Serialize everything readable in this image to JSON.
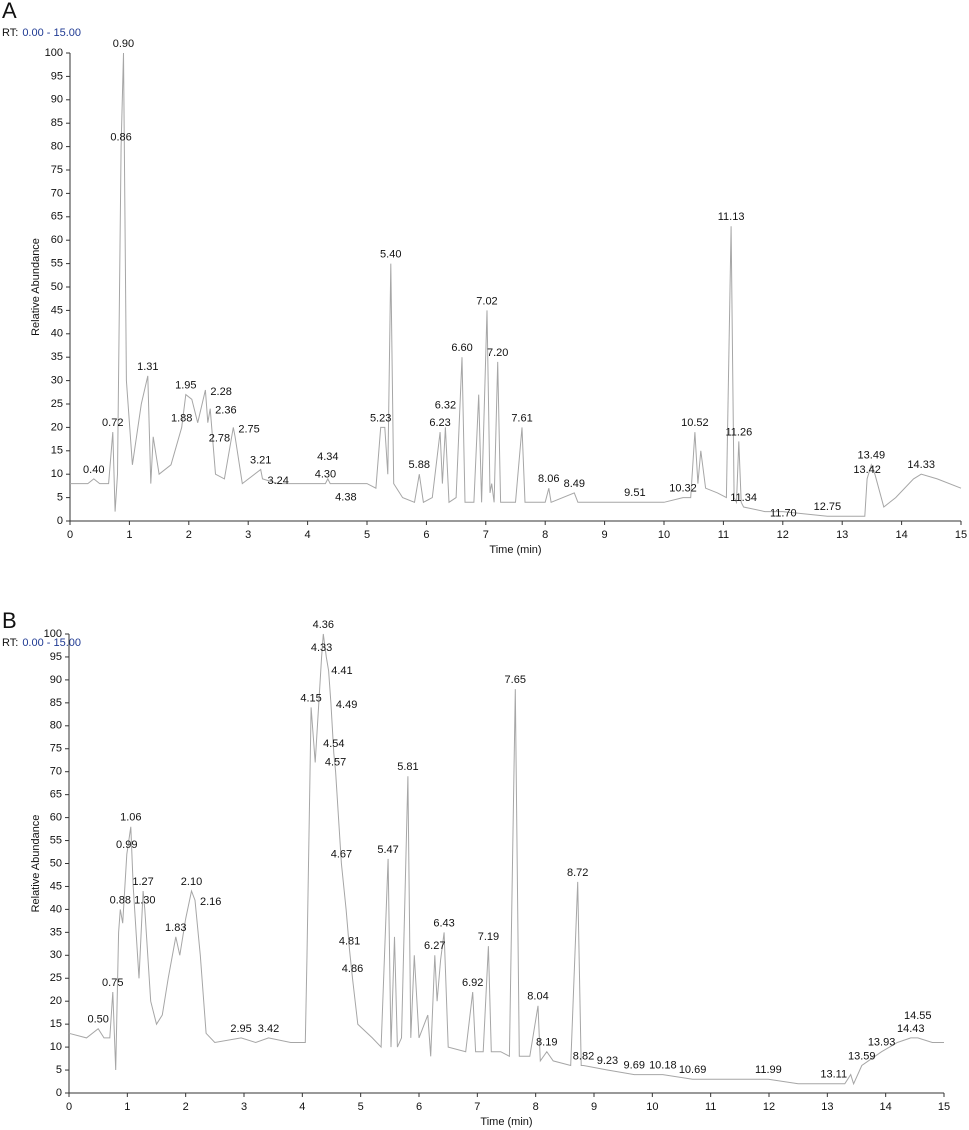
{
  "chart_data": [
    {
      "type": "line",
      "panel": "A",
      "rt_label": "RT:",
      "rt_range": "0.00 - 15.00",
      "x_label": "Time (min)",
      "y_label": "Relative Abundance",
      "color": "#a6a6a6",
      "xlim": [
        0,
        15
      ],
      "xticks": [
        0,
        1,
        2,
        3,
        4,
        5,
        6,
        7,
        8,
        9,
        10,
        11,
        12,
        13,
        14,
        15
      ],
      "ylim": [
        0,
        100
      ],
      "yticks": [
        0,
        5,
        10,
        15,
        20,
        25,
        30,
        35,
        40,
        45,
        50,
        55,
        60,
        65,
        70,
        75,
        80,
        85,
        90,
        95,
        100
      ],
      "x": [
        0,
        0.3,
        0.4,
        0.5,
        0.65,
        0.72,
        0.76,
        0.8,
        0.86,
        0.9,
        0.95,
        1.05,
        1.2,
        1.31,
        1.36,
        1.4,
        1.5,
        1.7,
        1.88,
        1.95,
        2.05,
        2.15,
        2.28,
        2.32,
        2.36,
        2.45,
        2.6,
        2.75,
        2.78,
        2.9,
        3.21,
        3.24,
        3.5,
        4.3,
        4.34,
        4.38,
        5.0,
        5.15,
        5.23,
        5.3,
        5.35,
        5.4,
        5.45,
        5.6,
        5.8,
        5.88,
        5.95,
        6.1,
        6.23,
        6.27,
        6.32,
        6.38,
        6.5,
        6.6,
        6.65,
        6.8,
        6.88,
        6.93,
        7.02,
        7.07,
        7.1,
        7.14,
        7.2,
        7.25,
        7.5,
        7.61,
        7.66,
        8.0,
        8.06,
        8.1,
        8.49,
        8.55,
        9.51,
        10.0,
        10.32,
        10.45,
        10.52,
        10.57,
        10.62,
        10.7,
        10.9,
        11.05,
        11.13,
        11.18,
        11.22,
        11.26,
        11.3,
        11.34,
        11.7,
        12.0,
        12.75,
        13.3,
        13.38,
        13.42,
        13.49,
        13.55,
        13.7,
        13.9,
        14.2,
        14.33,
        14.6,
        15
      ],
      "values": [
        8,
        8,
        9,
        8,
        8,
        19,
        2,
        10,
        80,
        100,
        30,
        12,
        25,
        31,
        8,
        18,
        10,
        12,
        20,
        27,
        26,
        21,
        28,
        21,
        24,
        10,
        9,
        20,
        18,
        8,
        11,
        9,
        8,
        8,
        9,
        8,
        8,
        7,
        20,
        20,
        10,
        55,
        8,
        5,
        4,
        10,
        4,
        5,
        19,
        8,
        20,
        4,
        5,
        35,
        4,
        4,
        27,
        4,
        45,
        6,
        8,
        4,
        34,
        4,
        4,
        20,
        4,
        4,
        7,
        4,
        6,
        4,
        4,
        4,
        5,
        5,
        19,
        8,
        15,
        7,
        6,
        5,
        63,
        5,
        4,
        17,
        4,
        3,
        2,
        2,
        1,
        1,
        1,
        9,
        12,
        10,
        3,
        5,
        9,
        10,
        9,
        7
      ],
      "peaks": [
        {
          "value": 0.4,
          "label": "0.40",
          "height": 9
        },
        {
          "value": 0.72,
          "label": "0.72",
          "height": 19
        },
        {
          "value": 0.86,
          "label": "0.86",
          "height": 80
        },
        {
          "value": 0.9,
          "label": "0.90",
          "height": 100
        },
        {
          "value": 1.31,
          "label": "1.31",
          "height": 31
        },
        {
          "value": 1.88,
          "label": "1.88",
          "height": 20
        },
        {
          "value": 1.95,
          "label": "1.95",
          "height": 27
        },
        {
          "value": 2.28,
          "label": "2.28",
          "height": 28
        },
        {
          "value": 2.36,
          "label": "2.36",
          "height": 24
        },
        {
          "value": 2.75,
          "label": "2.75",
          "height": 20
        },
        {
          "value": 2.78,
          "label": "2.78",
          "height": 18
        },
        {
          "value": 3.21,
          "label": "3.21",
          "height": 11
        },
        {
          "value": 3.24,
          "label": "3.24",
          "height": 9
        },
        {
          "value": 4.3,
          "label": "4.30",
          "height": 8
        },
        {
          "value": 4.34,
          "label": "4.34",
          "height": 9
        },
        {
          "value": 4.38,
          "label": "4.38",
          "height": 8
        },
        {
          "value": 5.23,
          "label": "5.23",
          "height": 20
        },
        {
          "value": 5.4,
          "label": "5.40",
          "height": 55
        },
        {
          "value": 5.88,
          "label": "5.88",
          "height": 10
        },
        {
          "value": 6.23,
          "label": "6.23",
          "height": 19
        },
        {
          "value": 6.32,
          "label": "6.32",
          "height": 20
        },
        {
          "value": 6.6,
          "label": "6.60",
          "height": 35
        },
        {
          "value": 7.02,
          "label": "7.02",
          "height": 45
        },
        {
          "value": 7.2,
          "label": "7.20",
          "height": 34
        },
        {
          "value": 7.61,
          "label": "7.61",
          "height": 20
        },
        {
          "value": 8.06,
          "label": "8.06",
          "height": 7
        },
        {
          "value": 8.49,
          "label": "8.49",
          "height": 6
        },
        {
          "value": 9.51,
          "label": "9.51",
          "height": 4
        },
        {
          "value": 10.32,
          "label": "10.32",
          "height": 5
        },
        {
          "value": 10.52,
          "label": "10.52",
          "height": 19
        },
        {
          "value": 11.13,
          "label": "11.13",
          "height": 63
        },
        {
          "value": 11.26,
          "label": "11.26",
          "height": 17
        },
        {
          "value": 11.34,
          "label": "11.34",
          "height": 3
        },
        {
          "value": 11.7,
          "label": "11.70",
          "height": 2
        },
        {
          "value": 12.75,
          "label": "12.75",
          "height": 1
        },
        {
          "value": 13.42,
          "label": "13.42",
          "height": 9
        },
        {
          "value": 13.49,
          "label": "13.49",
          "height": 12
        },
        {
          "value": 14.33,
          "label": "14.33",
          "height": 10
        }
      ]
    },
    {
      "type": "line",
      "panel": "B",
      "rt_label": "RT:",
      "rt_range": "0.00 - 15.00",
      "x_label": "Time (min)",
      "y_label": "Relative Abundance",
      "color": "#a6a6a6",
      "xlim": [
        0,
        15
      ],
      "xticks": [
        0,
        1,
        2,
        3,
        4,
        5,
        6,
        7,
        8,
        9,
        10,
        11,
        12,
        13,
        14,
        15
      ],
      "ylim": [
        0,
        100
      ],
      "yticks": [
        0,
        5,
        10,
        15,
        20,
        25,
        30,
        35,
        40,
        45,
        50,
        55,
        60,
        65,
        70,
        75,
        80,
        85,
        90,
        95,
        100
      ],
      "x": [
        0,
        0.3,
        0.5,
        0.6,
        0.7,
        0.75,
        0.8,
        0.85,
        0.88,
        0.92,
        0.99,
        1.06,
        1.1,
        1.2,
        1.27,
        1.3,
        1.4,
        1.5,
        1.6,
        1.7,
        1.83,
        1.9,
        2.0,
        2.1,
        2.16,
        2.25,
        2.35,
        2.5,
        2.95,
        3.2,
        3.42,
        3.8,
        4.05,
        4.08,
        4.15,
        4.22,
        4.33,
        4.36,
        4.41,
        4.45,
        4.49,
        4.54,
        4.57,
        4.67,
        4.75,
        4.81,
        4.86,
        4.95,
        5.2,
        5.35,
        5.47,
        5.52,
        5.58,
        5.63,
        5.7,
        5.81,
        5.86,
        5.92,
        6.0,
        6.15,
        6.2,
        6.27,
        6.31,
        6.37,
        6.43,
        6.5,
        6.8,
        6.92,
        6.97,
        7.1,
        7.19,
        7.24,
        7.4,
        7.55,
        7.65,
        7.72,
        7.9,
        8.04,
        8.08,
        8.19,
        8.3,
        8.6,
        8.72,
        8.78,
        8.82,
        9.23,
        9.69,
        10.18,
        10.69,
        11.5,
        11.99,
        12.5,
        13.11,
        13.3,
        13.4,
        13.45,
        13.59,
        13.93,
        14.2,
        14.43,
        14.55,
        14.8,
        15
      ],
      "values": [
        13,
        12,
        14,
        12,
        12,
        22,
        5,
        35,
        40,
        37,
        52,
        58,
        45,
        25,
        44,
        40,
        20,
        15,
        17,
        25,
        34,
        30,
        38,
        44,
        42,
        30,
        13,
        11,
        12,
        11,
        12,
        11,
        11,
        30,
        84,
        72,
        95,
        100,
        95,
        92,
        85,
        74,
        70,
        50,
        40,
        31,
        25,
        15,
        12,
        10,
        51,
        10,
        34,
        10,
        12,
        69,
        12,
        30,
        12,
        17,
        8,
        30,
        20,
        29,
        35,
        10,
        9,
        22,
        9,
        9,
        32,
        9,
        9,
        8,
        88,
        8,
        8,
        19,
        7,
        9,
        7,
        6,
        46,
        6,
        6,
        5,
        4,
        4,
        3,
        3,
        3,
        2,
        2,
        2,
        4,
        2,
        6,
        9,
        11,
        12,
        12,
        11,
        11
      ],
      "peaks": [
        {
          "value": 0.5,
          "label": "0.50",
          "height": 14
        },
        {
          "value": 0.75,
          "label": "0.75",
          "height": 22
        },
        {
          "value": 0.88,
          "label": "0.88",
          "height": 40
        },
        {
          "value": 0.99,
          "label": "0.99",
          "height": 52
        },
        {
          "value": 1.06,
          "label": "1.06",
          "height": 58
        },
        {
          "value": 1.27,
          "label": "1.27",
          "height": 44
        },
        {
          "value": 1.3,
          "label": "1.30",
          "height": 40
        },
        {
          "value": 1.83,
          "label": "1.83",
          "height": 34
        },
        {
          "value": 2.1,
          "label": "2.10",
          "height": 44
        },
        {
          "value": 2.16,
          "label": "2.16",
          "height": 42
        },
        {
          "value": 2.95,
          "label": "2.95",
          "height": 12
        },
        {
          "value": 3.42,
          "label": "3.42",
          "height": 12
        },
        {
          "value": 4.15,
          "label": "4.15",
          "height": 84
        },
        {
          "value": 4.33,
          "label": "4.33",
          "height": 95
        },
        {
          "value": 4.36,
          "label": "4.36",
          "height": 100
        },
        {
          "value": 4.41,
          "label": "4.41",
          "height": 95
        },
        {
          "value": 4.49,
          "label": "4.49",
          "height": 85
        },
        {
          "value": 4.54,
          "label": "4.54",
          "height": 74
        },
        {
          "value": 4.57,
          "label": "4.57",
          "height": 70
        },
        {
          "value": 4.67,
          "label": "4.67",
          "height": 50
        },
        {
          "value": 4.81,
          "label": "4.81",
          "height": 31
        },
        {
          "value": 4.86,
          "label": "4.86",
          "height": 25
        },
        {
          "value": 5.47,
          "label": "5.47",
          "height": 51
        },
        {
          "value": 5.81,
          "label": "5.81",
          "height": 69
        },
        {
          "value": 6.27,
          "label": "6.27",
          "height": 30
        },
        {
          "value": 6.43,
          "label": "6.43",
          "height": 35
        },
        {
          "value": 6.92,
          "label": "6.92",
          "height": 22
        },
        {
          "value": 7.19,
          "label": "7.19",
          "height": 32
        },
        {
          "value": 7.65,
          "label": "7.65",
          "height": 88
        },
        {
          "value": 8.04,
          "label": "8.04",
          "height": 19
        },
        {
          "value": 8.19,
          "label": "8.19",
          "height": 9
        },
        {
          "value": 8.72,
          "label": "8.72",
          "height": 46
        },
        {
          "value": 8.82,
          "label": "8.82",
          "height": 6
        },
        {
          "value": 9.23,
          "label": "9.23",
          "height": 5
        },
        {
          "value": 9.69,
          "label": "9.69",
          "height": 4
        },
        {
          "value": 10.18,
          "label": "10.18",
          "height": 4
        },
        {
          "value": 10.69,
          "label": "10.69",
          "height": 3
        },
        {
          "value": 11.99,
          "label": "11.99",
          "height": 3
        },
        {
          "value": 13.11,
          "label": "13.11",
          "height": 2
        },
        {
          "value": 13.59,
          "label": "13.59",
          "height": 6
        },
        {
          "value": 13.93,
          "label": "13.93",
          "height": 9
        },
        {
          "value": 14.43,
          "label": "14.43",
          "height": 12
        },
        {
          "value": 14.55,
          "label": "14.55",
          "height": 12
        }
      ]
    }
  ]
}
